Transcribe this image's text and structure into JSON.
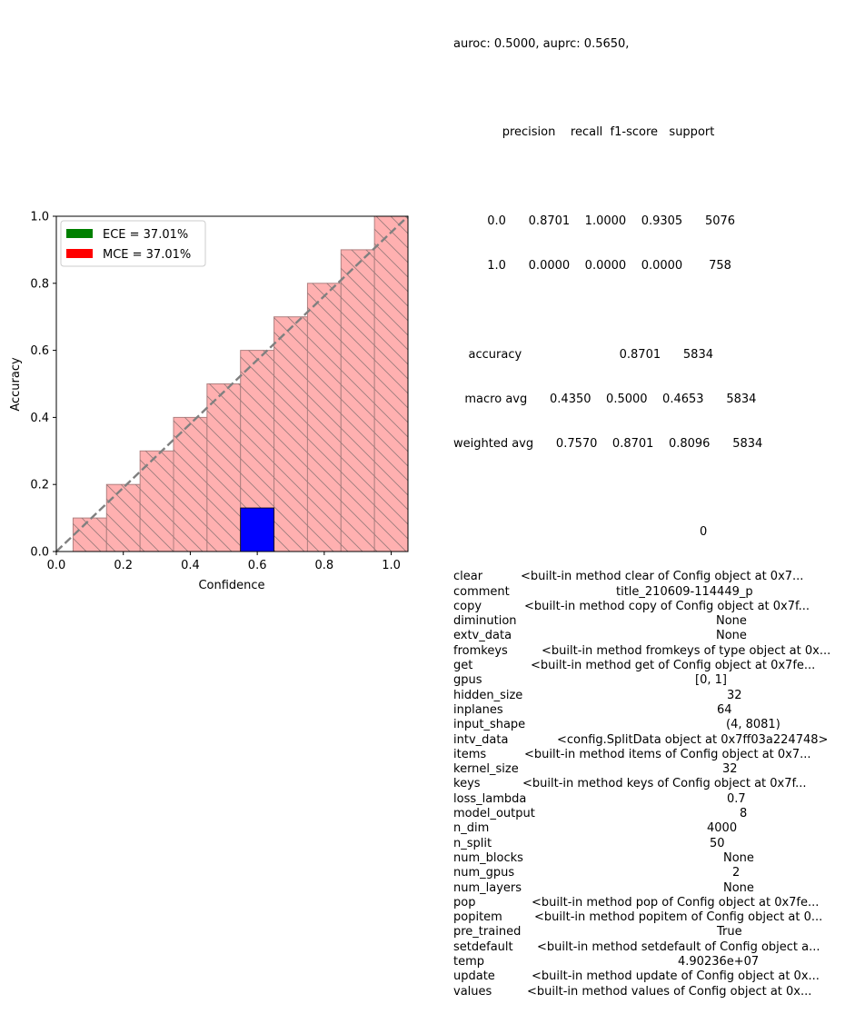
{
  "chart_data": {
    "type": "bar",
    "xlabel": "Confidence",
    "ylabel": "Accuracy",
    "xlim": [
      0.0,
      1.05
    ],
    "ylim": [
      0.0,
      1.0
    ],
    "xticks": [
      "0.0",
      "0.2",
      "0.4",
      "0.6",
      "0.8",
      "1.0"
    ],
    "yticks": [
      "0.0",
      "0.2",
      "0.4",
      "0.6",
      "0.8",
      "1.0"
    ],
    "bin_width": 0.1,
    "bin_centers": [
      0.1,
      0.2,
      0.3,
      0.4,
      0.5,
      0.6,
      0.7,
      0.8,
      0.9,
      1.0
    ],
    "series": [
      {
        "role": "gap",
        "values": [
          0.1,
          0.2,
          0.3,
          0.4,
          0.5,
          0.6,
          0.7,
          0.8,
          0.9,
          1.0
        ],
        "color": "#ffb0b0",
        "hatch": "\\"
      },
      {
        "role": "output",
        "x": [
          0.6
        ],
        "values": [
          0.13
        ],
        "color": "#0000ff"
      }
    ],
    "reference_line": {
      "from": [
        0.0,
        0.0
      ],
      "to": [
        1.05,
        1.05
      ],
      "style": "dashed",
      "color": "#808080"
    },
    "legend": {
      "placement": "upper-left",
      "items": [
        {
          "label": "ECE = 37.01%",
          "color": "#008000"
        },
        {
          "label": "MCE = 37.01%",
          "color": "#ff0000"
        }
      ]
    },
    "grid": false
  },
  "report": {
    "scores_line": "auroc: 0.5000, auprc: 0.5650,",
    "classification_header": "             precision    recall  f1-score   support",
    "rows": [
      "         0.0      0.8701    1.0000    0.9305      5076",
      "         1.0      0.0000    0.0000    0.0000       758"
    ],
    "summary": [
      "    accuracy                          0.8701      5834",
      "   macro avg      0.4350    0.5000    0.4653      5834",
      "weighted avg      0.7570    0.8701    0.8096      5834"
    ]
  },
  "config_table": {
    "column_header": "0",
    "entries": [
      {
        "key": "clear",
        "value": "<built-in method clear of Config object at 0x7..."
      },
      {
        "key": "comment",
        "value": "title_210609-114449_p"
      },
      {
        "key": "copy",
        "value": "<built-in method copy of Config object at 0x7f..."
      },
      {
        "key": "diminution",
        "value": "None"
      },
      {
        "key": "extv_data",
        "value": "None"
      },
      {
        "key": "fromkeys",
        "value": "<built-in method fromkeys of type object at 0x..."
      },
      {
        "key": "get",
        "value": "<built-in method get of Config object at 0x7fe..."
      },
      {
        "key": "gpus",
        "value": "[0, 1]"
      },
      {
        "key": "hidden_size",
        "value": "32"
      },
      {
        "key": "inplanes",
        "value": "64"
      },
      {
        "key": "input_shape",
        "value": "(4, 8081)"
      },
      {
        "key": "intv_data",
        "value": "<config.SplitData object at 0x7ff03a224748>"
      },
      {
        "key": "items",
        "value": "<built-in method items of Config object at 0x7..."
      },
      {
        "key": "kernel_size",
        "value": "32"
      },
      {
        "key": "keys",
        "value": "<built-in method keys of Config object at 0x7f..."
      },
      {
        "key": "loss_lambda",
        "value": "0.7"
      },
      {
        "key": "model_output",
        "value": "8"
      },
      {
        "key": "n_dim",
        "value": "4000"
      },
      {
        "key": "n_split",
        "value": "50"
      },
      {
        "key": "num_blocks",
        "value": "None"
      },
      {
        "key": "num_gpus",
        "value": "2"
      },
      {
        "key": "num_layers",
        "value": "None"
      },
      {
        "key": "pop",
        "value": "<built-in method pop of Config object at 0x7fe..."
      },
      {
        "key": "popitem",
        "value": "<built-in method popitem of Config object at 0..."
      },
      {
        "key": "pre_trained",
        "value": "True"
      },
      {
        "key": "setdefault",
        "value": "<built-in method setdefault of Config object a..."
      },
      {
        "key": "temp",
        "value": "4.90236e+07"
      },
      {
        "key": "update",
        "value": "<built-in method update of Config object at 0x..."
      },
      {
        "key": "values",
        "value": "<built-in method values of Config object at 0x..."
      }
    ]
  }
}
